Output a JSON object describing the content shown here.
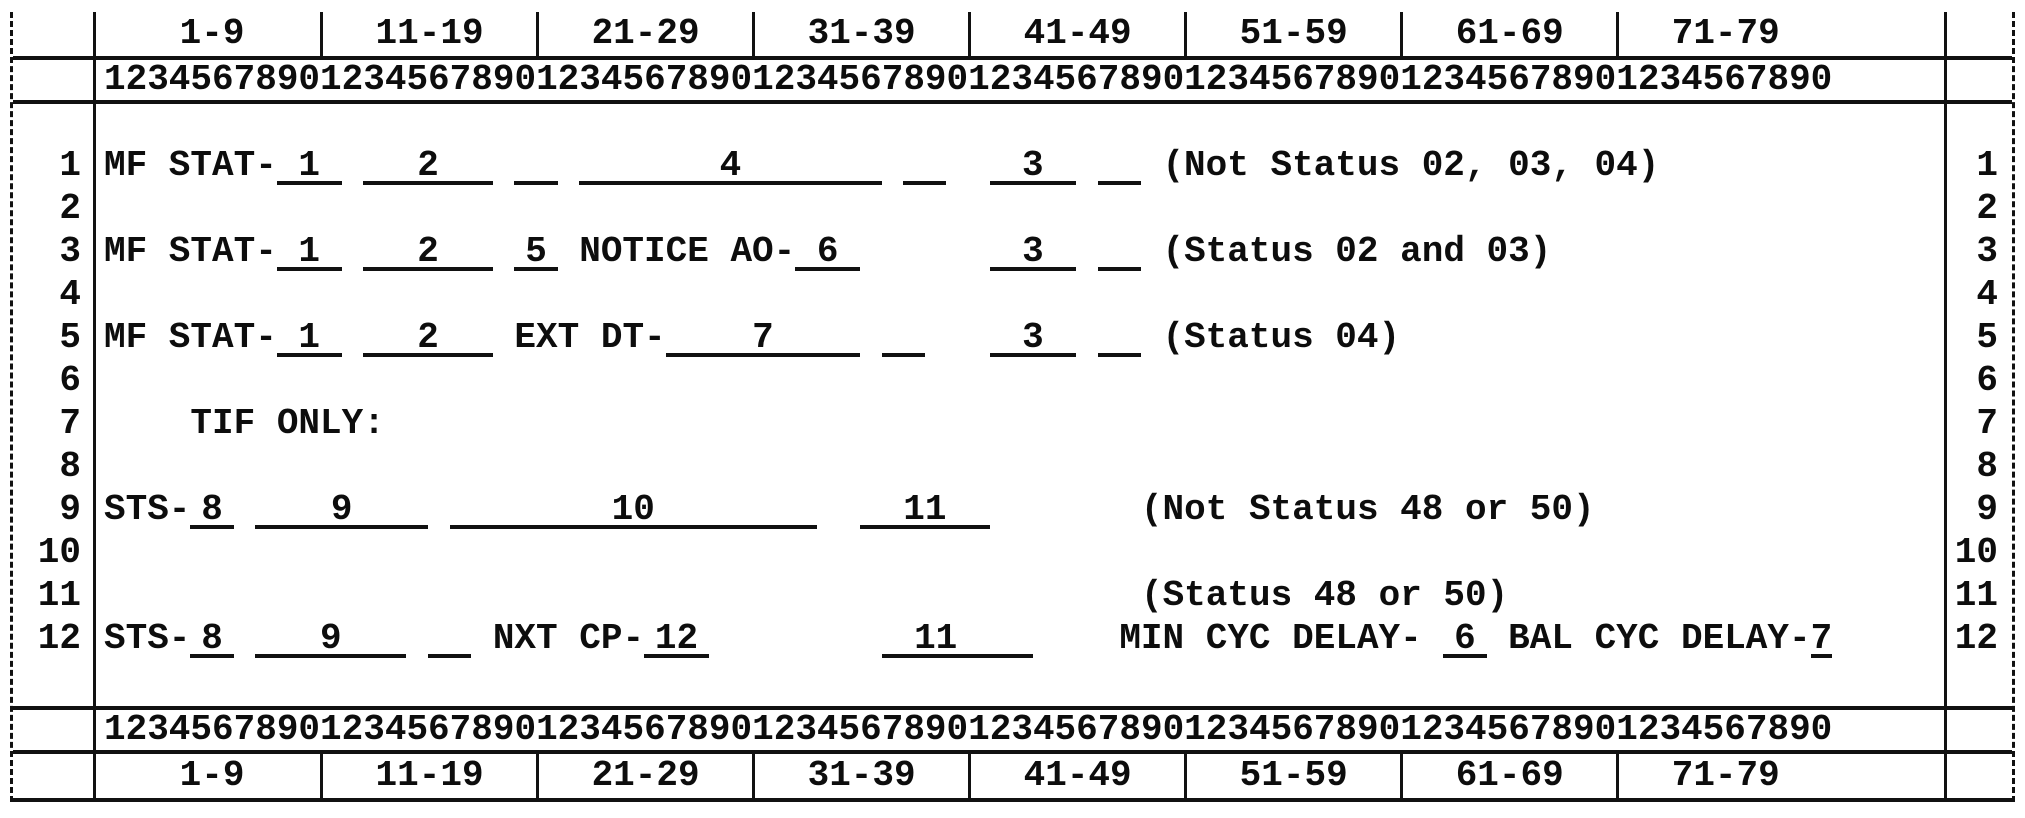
{
  "sheet": {
    "ink_color": "#0d0d0d",
    "paper_color": "#ffffff",
    "ruler": {
      "ranges": [
        "1-9",
        "11-19",
        "21-29",
        "31-39",
        "41-49",
        "51-59",
        "61-69",
        "71-79"
      ],
      "digits": "12345678901234567890123456789012345678901234567890123456789012345678901234567890"
    },
    "rows": [
      {
        "n": "1",
        "segs": [
          {
            "t": "MF STAT-"
          },
          {
            "f": "1",
            "w": 3
          },
          {
            "g": 1
          },
          {
            "f": "2",
            "w": 6
          },
          {
            "g": 1
          },
          {
            "f": "",
            "w": 2
          },
          {
            "g": 1
          },
          {
            "f": "4",
            "w": 14
          },
          {
            "g": 1
          },
          {
            "f": "",
            "w": 2
          },
          {
            "g": 2
          },
          {
            "f": "3",
            "w": 4
          },
          {
            "g": 1
          },
          {
            "f": "",
            "w": 2
          },
          {
            "g": 1
          },
          {
            "t": "(Not Status 02, 03, 04)"
          }
        ]
      },
      {
        "n": "2",
        "segs": []
      },
      {
        "n": "3",
        "segs": [
          {
            "t": "MF STAT-"
          },
          {
            "f": "1",
            "w": 3
          },
          {
            "g": 1
          },
          {
            "f": "2",
            "w": 6
          },
          {
            "g": 1
          },
          {
            "f": "5",
            "w": 2
          },
          {
            "g": 1
          },
          {
            "t": "NOTICE AO-"
          },
          {
            "f": "6",
            "w": 3
          },
          {
            "g": 6
          },
          {
            "f": "3",
            "w": 4
          },
          {
            "g": 1
          },
          {
            "f": "",
            "w": 2
          },
          {
            "g": 1
          },
          {
            "t": "(Status 02 and 03)"
          }
        ]
      },
      {
        "n": "4",
        "segs": []
      },
      {
        "n": "5",
        "segs": [
          {
            "t": "MF STAT-"
          },
          {
            "f": "1",
            "w": 3
          },
          {
            "g": 1
          },
          {
            "f": "2",
            "w": 6
          },
          {
            "g": 1
          },
          {
            "t": "EXT DT-"
          },
          {
            "f": "7",
            "w": 9
          },
          {
            "g": 1
          },
          {
            "f": "",
            "w": 2
          },
          {
            "g": 3
          },
          {
            "f": "3",
            "w": 4
          },
          {
            "g": 1
          },
          {
            "f": "",
            "w": 2
          },
          {
            "g": 1
          },
          {
            "t": "(Status 04)"
          }
        ]
      },
      {
        "n": "6",
        "segs": []
      },
      {
        "n": "7",
        "segs": [
          {
            "g": 4
          },
          {
            "t": "TIF ONLY:"
          }
        ]
      },
      {
        "n": "8",
        "segs": []
      },
      {
        "n": "9",
        "segs": [
          {
            "t": "STS-"
          },
          {
            "f": "8",
            "w": 2
          },
          {
            "g": 1
          },
          {
            "f": "9",
            "w": 8
          },
          {
            "g": 1
          },
          {
            "f": "10",
            "w": 17
          },
          {
            "g": 2
          },
          {
            "f": "11",
            "w": 6
          },
          {
            "g": 7
          },
          {
            "t": "(Not Status 48 or 50)"
          }
        ]
      },
      {
        "n": "10",
        "segs": []
      },
      {
        "n": "11",
        "segs": [
          {
            "g": 48
          },
          {
            "t": "(Status 48 or 50)"
          }
        ]
      },
      {
        "n": "12",
        "segs": [
          {
            "t": "STS-"
          },
          {
            "f": "8",
            "w": 2
          },
          {
            "g": 1
          },
          {
            "f": "9",
            "w": 7
          },
          {
            "g": 1
          },
          {
            "f": "",
            "w": 2
          },
          {
            "g": 1
          },
          {
            "t": "NXT CP-"
          },
          {
            "f": "12",
            "w": 3
          },
          {
            "g": 8
          },
          {
            "f": "11",
            "w": 5
          },
          {
            "f": "",
            "w": 2
          },
          {
            "g": 4
          },
          {
            "t": "MIN CYC DELAY-"
          },
          {
            "g": 1
          },
          {
            "f": "6",
            "w": 2
          },
          {
            "g": 1
          },
          {
            "t": "BAL CYC DELAY-"
          },
          {
            "f": "7",
            "w": 1
          }
        ]
      }
    ]
  }
}
